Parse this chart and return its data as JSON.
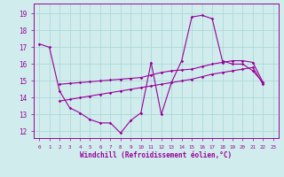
{
  "bg_color": "#d0ecec",
  "grid_color": "#a8d4d4",
  "line_color": "#990099",
  "xlabel": "Windchill (Refroidissement éolien,°C)",
  "xlim": [
    -0.5,
    23.5
  ],
  "ylim": [
    11.6,
    19.6
  ],
  "yticks": [
    12,
    13,
    14,
    15,
    16,
    17,
    18,
    19
  ],
  "xticks": [
    0,
    1,
    2,
    3,
    4,
    5,
    6,
    7,
    8,
    9,
    10,
    11,
    12,
    13,
    14,
    15,
    16,
    17,
    18,
    19,
    20,
    21,
    22,
    23
  ],
  "line1_x": [
    0,
    1,
    2,
    3,
    4,
    5,
    6,
    7,
    8,
    9,
    10,
    11,
    12,
    13,
    14,
    15,
    16,
    17,
    18,
    19,
    20,
    21,
    22
  ],
  "line1_y": [
    17.2,
    17.0,
    14.4,
    13.4,
    13.1,
    12.7,
    12.5,
    12.5,
    11.9,
    12.65,
    13.1,
    16.1,
    13.0,
    14.9,
    16.2,
    18.8,
    18.9,
    18.7,
    16.2,
    16.0,
    16.0,
    15.6,
    14.9
  ],
  "line2_x": [
    2,
    3,
    4,
    5,
    6,
    7,
    8,
    9,
    10,
    11,
    12,
    13,
    14,
    15,
    16,
    17,
    18,
    19,
    20,
    21,
    22
  ],
  "line2_y": [
    14.8,
    14.85,
    14.9,
    14.95,
    15.0,
    15.05,
    15.1,
    15.15,
    15.2,
    15.35,
    15.5,
    15.6,
    15.65,
    15.7,
    15.85,
    16.0,
    16.1,
    16.2,
    16.2,
    16.1,
    14.9
  ],
  "line3_x": [
    2,
    3,
    4,
    5,
    6,
    7,
    8,
    9,
    10,
    11,
    12,
    13,
    14,
    15,
    16,
    17,
    18,
    19,
    20,
    21,
    22
  ],
  "line3_y": [
    13.8,
    13.9,
    14.0,
    14.1,
    14.2,
    14.3,
    14.4,
    14.5,
    14.6,
    14.7,
    14.8,
    14.9,
    15.0,
    15.1,
    15.25,
    15.4,
    15.5,
    15.6,
    15.7,
    15.8,
    14.8
  ]
}
